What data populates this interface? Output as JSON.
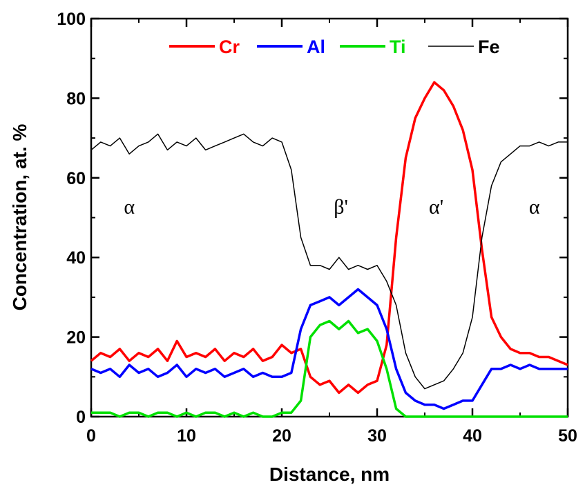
{
  "chart_data": {
    "type": "line",
    "title": "",
    "xlabel": "Distance, nm",
    "ylabel": "Concentration, at. %",
    "xlim": [
      0,
      50
    ],
    "ylim": [
      0,
      100
    ],
    "x_ticks": [
      0,
      10,
      20,
      30,
      40,
      50
    ],
    "y_ticks": [
      0,
      20,
      40,
      60,
      80,
      100
    ],
    "grid": false,
    "legend_position": "top",
    "x": [
      0,
      1,
      2,
      3,
      4,
      5,
      6,
      7,
      8,
      9,
      10,
      11,
      12,
      13,
      14,
      15,
      16,
      17,
      18,
      19,
      20,
      21,
      22,
      23,
      24,
      25,
      26,
      27,
      28,
      29,
      30,
      31,
      32,
      33,
      34,
      35,
      36,
      37,
      38,
      39,
      40,
      41,
      42,
      43,
      44,
      45,
      46,
      47,
      48,
      49,
      50
    ],
    "series": [
      {
        "name": "Cr",
        "color": "#ff0000",
        "values": [
          14,
          16,
          15,
          17,
          14,
          16,
          15,
          17,
          14,
          19,
          15,
          16,
          15,
          17,
          14,
          16,
          15,
          17,
          14,
          15,
          18,
          16,
          17,
          10,
          8,
          9,
          6,
          8,
          6,
          8,
          9,
          18,
          45,
          65,
          75,
          80,
          84,
          82,
          78,
          72,
          62,
          42,
          25,
          20,
          17,
          16,
          16,
          15,
          15,
          14,
          13
        ]
      },
      {
        "name": "Al",
        "color": "#0000ff",
        "values": [
          12,
          11,
          12,
          10,
          13,
          11,
          12,
          10,
          11,
          13,
          10,
          12,
          11,
          12,
          10,
          11,
          12,
          10,
          11,
          10,
          10,
          11,
          22,
          28,
          29,
          30,
          28,
          30,
          32,
          30,
          28,
          22,
          12,
          6,
          4,
          3,
          3,
          2,
          3,
          4,
          4,
          8,
          12,
          12,
          13,
          12,
          13,
          12,
          12,
          12,
          12
        ]
      },
      {
        "name": "Ti",
        "color": "#00e000",
        "values": [
          1,
          1,
          1,
          0,
          1,
          1,
          0,
          1,
          1,
          0,
          1,
          0,
          1,
          1,
          0,
          1,
          0,
          1,
          0,
          0,
          1,
          1,
          4,
          20,
          23,
          24,
          22,
          24,
          21,
          22,
          19,
          12,
          2,
          0,
          0,
          0,
          0,
          0,
          0,
          0,
          0,
          0,
          0,
          0,
          0,
          0,
          0,
          0,
          0,
          0,
          0
        ]
      },
      {
        "name": "Fe",
        "color": "#000000",
        "values": [
          67,
          69,
          68,
          70,
          66,
          68,
          69,
          71,
          67,
          69,
          68,
          70,
          67,
          68,
          69,
          70,
          71,
          69,
          68,
          70,
          69,
          62,
          45,
          38,
          38,
          37,
          40,
          37,
          38,
          37,
          38,
          34,
          28,
          16,
          10,
          7,
          8,
          9,
          12,
          16,
          25,
          45,
          58,
          64,
          66,
          68,
          68,
          69,
          68,
          69,
          69
        ]
      }
    ],
    "annotations": [
      {
        "text": "α",
        "x": 4,
        "y": 51
      },
      {
        "text": "β'",
        "x": 26.2,
        "y": 51
      },
      {
        "text": "α'",
        "x": 36.2,
        "y": 51
      },
      {
        "text": "α",
        "x": 46.5,
        "y": 51
      }
    ]
  }
}
